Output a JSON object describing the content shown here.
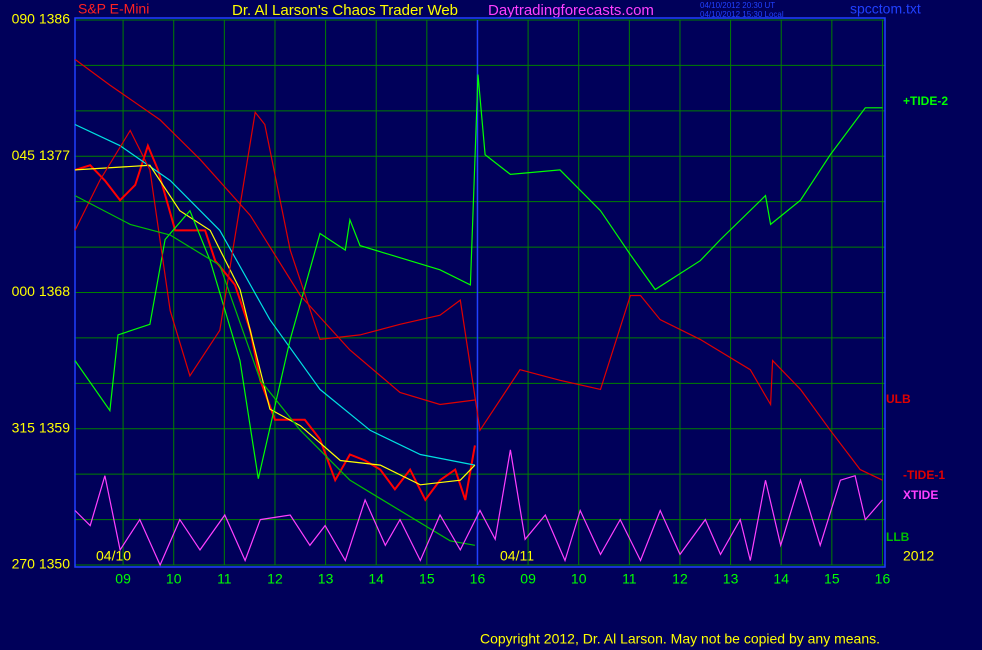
{
  "chart_data": {
    "type": "line",
    "title": "S&P E-Mini",
    "subtitle": "Dr. Al Larson's Chaos Trader Web",
    "annotations": [
      "Daytradingforecasts.com",
      "04/10/2012 20:30 UT",
      "04/10/2012 15:30 Local",
      "spcctom.txt",
      "04/10",
      "04/11",
      "2012",
      "Copyright 2012, Dr. Al Larson. May not be copied by any means."
    ],
    "xlim": [
      0.05,
      16.05
    ],
    "xticks": [
      {
        "value": 1,
        "label": "09"
      },
      {
        "value": 2,
        "label": "10"
      },
      {
        "value": 3,
        "label": "11"
      },
      {
        "value": 4,
        "label": "12"
      },
      {
        "value": 5,
        "label": "13"
      },
      {
        "value": 6,
        "label": "14"
      },
      {
        "value": 7,
        "label": "15"
      },
      {
        "value": 8,
        "label": "16"
      },
      {
        "value": 9,
        "label": "09"
      },
      {
        "value": 10,
        "label": "10"
      },
      {
        "value": 11,
        "label": "11"
      },
      {
        "value": 12,
        "label": "12"
      },
      {
        "value": 13,
        "label": "13"
      },
      {
        "value": 14,
        "label": "14"
      },
      {
        "value": 15,
        "label": "15"
      },
      {
        "value": 16,
        "label": "16"
      }
    ],
    "day_divider": 8,
    "ylim": [
      1350,
      1386
    ],
    "yticks": [
      {
        "value": 1386,
        "label": "090 1386"
      },
      {
        "value": 1377,
        "label": "045 1377"
      },
      {
        "value": 1368,
        "label": "000 1368"
      },
      {
        "value": 1359,
        "label": "315 1359"
      },
      {
        "value": 1350,
        "label": "270 1350"
      }
    ],
    "yticks_minor": [
      1353,
      1356,
      1362,
      1365,
      1371,
      1374,
      1380,
      1383
    ],
    "grid": true,
    "series": [
      {
        "color": "#ff0000",
        "x": [
          0.05,
          0.35,
          0.64,
          0.94,
          1.24,
          1.49,
          1.69,
          2.03,
          2.32,
          2.62,
          2.82,
          3.21,
          3.51,
          3.71,
          4.0,
          4.3,
          4.59,
          4.89,
          5.19,
          5.48,
          5.78,
          6.08,
          6.37,
          6.67,
          6.97,
          7.26,
          7.56,
          7.76,
          7.95
        ],
        "values": [
          1376.1,
          1376.4,
          1375.4,
          1374.1,
          1375.1,
          1377.7,
          1376.1,
          1372.1,
          1372.1,
          1372.1,
          1370.1,
          1368.5,
          1365.5,
          1362.2,
          1359.6,
          1359.6,
          1359.6,
          1358.3,
          1355.6,
          1357.3,
          1356.9,
          1356.3,
          1355.0,
          1356.3,
          1354.3,
          1355.6,
          1356.3,
          1354.3,
          1357.9
        ]
      },
      {
        "color": "#00e0e0",
        "x": [
          0.05,
          0.94,
          1.93,
          2.91,
          3.9,
          4.89,
          5.88,
          6.87,
          7.95
        ],
        "values": [
          1379.1,
          1377.7,
          1375.4,
          1372.1,
          1366.2,
          1361.6,
          1358.9,
          1357.3,
          1356.6
        ]
      },
      {
        "color": "#ffff00",
        "x": [
          0.05,
          1.53,
          2.12,
          2.72,
          3.31,
          3.9,
          4.5,
          5.29,
          6.08,
          6.87,
          7.66,
          7.95
        ],
        "values": [
          1376.1,
          1376.4,
          1373.4,
          1372.1,
          1368.2,
          1360.3,
          1359.2,
          1356.9,
          1356.6,
          1355.3,
          1355.6,
          1356.6
        ]
      },
      {
        "name": "+TIDE-2",
        "color": "#00ff00",
        "x": [
          0.05,
          0.74,
          0.9,
          1.53,
          1.83,
          2.32,
          2.72,
          3.31,
          3.67,
          4.3,
          4.89,
          5.39,
          5.48,
          5.68,
          6.47,
          7.26,
          7.86,
          8.01,
          8.15,
          8.65,
          9.63,
          10.43,
          11.02,
          11.51,
          12.4,
          12.8,
          13.69,
          13.79,
          14.38,
          14.97,
          15.66,
          16.0
        ],
        "values": [
          1363.5,
          1360.2,
          1365.2,
          1365.9,
          1371.5,
          1373.4,
          1370.1,
          1363.5,
          1355.7,
          1364.9,
          1371.9,
          1370.8,
          1372.8,
          1371.1,
          1370.3,
          1369.5,
          1368.5,
          1382.4,
          1377.1,
          1375.8,
          1376.1,
          1373.4,
          1370.5,
          1368.2,
          1370.1,
          1371.5,
          1374.4,
          1372.5,
          1374.1,
          1377.1,
          1380.2,
          1380.2
        ]
      },
      {
        "name": "ULB",
        "color": "#e00000",
        "x": [
          0.05,
          0.74,
          1.73,
          2.52,
          3.51,
          4.5,
          5.48,
          6.47,
          7.26,
          7.95
        ],
        "values": [
          1383.4,
          1381.7,
          1379.4,
          1376.8,
          1373.1,
          1367.8,
          1364.2,
          1361.4,
          1360.6,
          1360.9
        ]
      },
      {
        "name": "-TIDE-1",
        "color": "#e00000",
        "x": [
          0.05,
          0.54,
          1.14,
          1.53,
          1.93,
          2.32,
          2.91,
          3.61,
          3.8,
          4.3,
          4.89,
          5.68,
          6.47,
          7.26,
          7.66,
          8.05,
          8.84,
          9.63,
          10.43,
          11.02,
          11.22,
          11.61,
          12.4,
          13.39,
          13.79,
          13.83,
          14.38,
          14.97,
          15.56,
          16.0
        ],
        "values": [
          1372.1,
          1375.4,
          1378.7,
          1376.1,
          1366.8,
          1362.5,
          1365.5,
          1379.9,
          1379.1,
          1370.8,
          1364.9,
          1365.2,
          1365.9,
          1366.5,
          1367.5,
          1358.9,
          1362.9,
          1362.2,
          1361.6,
          1367.8,
          1367.8,
          1366.2,
          1364.9,
          1362.9,
          1360.6,
          1363.5,
          1361.6,
          1358.9,
          1356.3,
          1355.6
        ]
      },
      {
        "name": "LLB",
        "color": "#00c000",
        "x": [
          0.05,
          1.14,
          1.93,
          2.91,
          3.71,
          4.5,
          5.48,
          6.47,
          7.46,
          7.95
        ],
        "values": [
          1374.4,
          1372.5,
          1371.8,
          1369.8,
          1362.2,
          1358.9,
          1355.6,
          1353.6,
          1351.6,
          1351.3
        ]
      },
      {
        "name": "XTIDE",
        "color": "#ff40ff",
        "x": [
          0.05,
          0.35,
          0.64,
          0.94,
          1.33,
          1.73,
          2.12,
          2.52,
          3.01,
          3.41,
          3.71,
          4.3,
          4.69,
          4.99,
          5.39,
          5.78,
          6.18,
          6.47,
          6.87,
          7.26,
          7.66,
          8.05,
          8.35,
          8.65,
          8.94,
          9.34,
          9.73,
          10.03,
          10.43,
          10.82,
          11.22,
          11.61,
          12.0,
          12.5,
          12.8,
          13.19,
          13.39,
          13.69,
          13.99,
          14.38,
          14.77,
          15.17,
          15.46,
          15.66,
          16.0
        ],
        "values": [
          1353.6,
          1352.6,
          1355.9,
          1351.0,
          1353.0,
          1350.0,
          1353.0,
          1351.0,
          1353.3,
          1350.3,
          1353.0,
          1353.3,
          1351.3,
          1352.6,
          1350.3,
          1354.3,
          1351.3,
          1353.0,
          1350.3,
          1353.3,
          1351.0,
          1353.6,
          1351.7,
          1357.6,
          1351.7,
          1353.3,
          1350.3,
          1353.6,
          1350.7,
          1353.0,
          1350.3,
          1353.6,
          1350.7,
          1353.0,
          1350.7,
          1353.0,
          1350.3,
          1355.6,
          1351.3,
          1355.6,
          1351.3,
          1355.6,
          1355.9,
          1353.0,
          1354.3
        ]
      }
    ]
  }
}
